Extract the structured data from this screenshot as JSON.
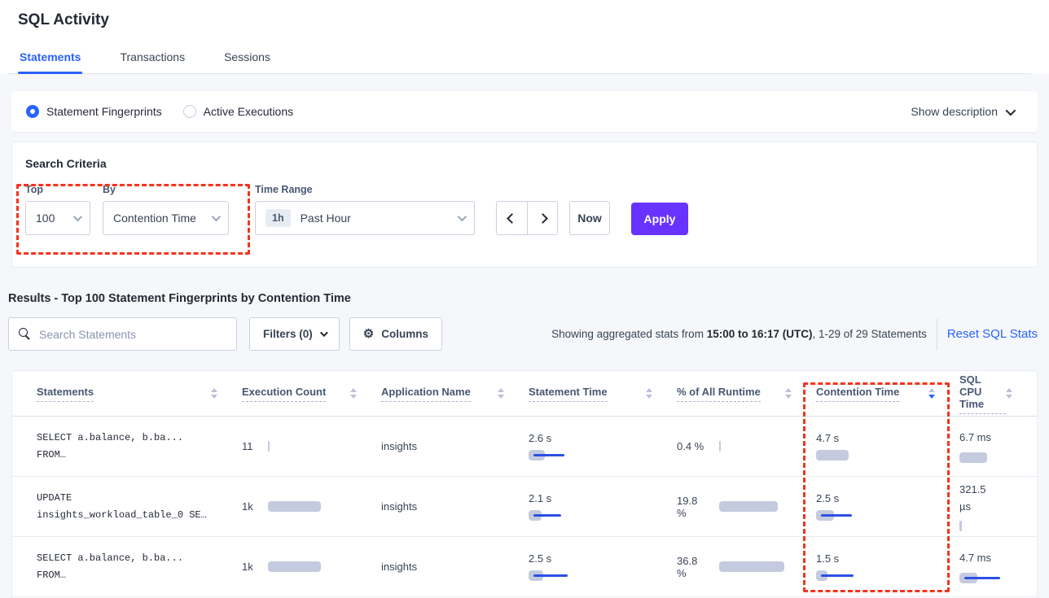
{
  "title": "SQL Activity",
  "tabs": [
    {
      "label": "Statements",
      "active": true
    },
    {
      "label": "Transactions",
      "active": false
    },
    {
      "label": "Sessions",
      "active": false
    }
  ],
  "view_toggle": {
    "options": [
      {
        "label": "Statement Fingerprints",
        "selected": true
      },
      {
        "label": "Active Executions",
        "selected": false
      }
    ],
    "show_description_label": "Show description"
  },
  "search_criteria": {
    "title": "Search Criteria",
    "top": {
      "label": "Top",
      "value": "100"
    },
    "by": {
      "label": "By",
      "value": "Contention Time"
    },
    "time_range": {
      "label": "Time Range",
      "badge": "1h",
      "value": "Past Hour"
    },
    "now_label": "Now",
    "apply_label": "Apply"
  },
  "results": {
    "heading": "Results - Top 100 Statement Fingerprints by Contention Time",
    "search_placeholder": "Search Statements",
    "filters_label": "Filters (0)",
    "columns_label": "Columns",
    "stats_prefix": "Showing aggregated stats from ",
    "stats_bold": "15:00 to 16:17 (UTC)",
    "stats_suffix": ", 1-29 of 29 Statements",
    "reset_label": "Reset SQL Stats"
  },
  "table": {
    "columns": [
      "Statements",
      "Execution Count",
      "Application Name",
      "Statement Time",
      "% of All Runtime",
      "Contention Time",
      "SQL CPU Time"
    ],
    "sorted_column_index": 5,
    "sort_direction": "desc",
    "rows": [
      {
        "statement_lines": [
          "SELECT a.balance, b.ba...",
          "FROM…"
        ],
        "execution": {
          "text": "11",
          "bar": {
            "gray": 2,
            "blue": 0
          }
        },
        "application": "insights",
        "statement_time": {
          "text": "2.6 s",
          "bar": {
            "gray": 20,
            "blue": 38
          }
        },
        "pct_runtime": {
          "text": "0.4 %",
          "bar": {
            "gray": 2,
            "blue": 0
          }
        },
        "contention_time": {
          "text": "4.7 s",
          "bar": {
            "gray": 40,
            "blue": 0
          }
        },
        "cpu_time": {
          "text": "6.7 ms",
          "bar": {
            "gray": 34,
            "blue": 0
          }
        }
      },
      {
        "statement_lines": [
          "UPDATE",
          "insights_workload_table_0 SE…"
        ],
        "execution": {
          "text": "1k",
          "bar": {
            "gray": 65,
            "blue": 0
          }
        },
        "application": "insights",
        "statement_time": {
          "text": "2.1 s",
          "bar": {
            "gray": 16,
            "blue": 34
          }
        },
        "pct_runtime": {
          "text": "19.8 %",
          "bar": {
            "gray": 72,
            "blue": 0
          }
        },
        "contention_time": {
          "text": "2.5 s",
          "bar": {
            "gray": 22,
            "blue": 38
          }
        },
        "cpu_time": {
          "text": "321.5 µs",
          "bar": {
            "gray": 3,
            "blue": 0
          }
        }
      },
      {
        "statement_lines": [
          "SELECT a.balance, b.ba...",
          "FROM…"
        ],
        "execution": {
          "text": "1k",
          "bar": {
            "gray": 65,
            "blue": 0
          }
        },
        "application": "insights",
        "statement_time": {
          "text": "2.5 s",
          "bar": {
            "gray": 18,
            "blue": 42
          }
        },
        "pct_runtime": {
          "text": "36.8 %",
          "bar": {
            "gray": 80,
            "blue": 0
          }
        },
        "contention_time": {
          "text": "1.5 s",
          "bar": {
            "gray": 14,
            "blue": 40
          }
        },
        "cpu_time": {
          "text": "4.7 ms",
          "bar": {
            "gray": 22,
            "blue": 44
          }
        }
      }
    ]
  },
  "colors": {
    "accent_blue": "#2962ff",
    "apply_purple": "#6933ff",
    "bar_gray": "#c4cbde",
    "bar_blue": "#2c4fe4",
    "annotation_red": "#f4331c"
  }
}
